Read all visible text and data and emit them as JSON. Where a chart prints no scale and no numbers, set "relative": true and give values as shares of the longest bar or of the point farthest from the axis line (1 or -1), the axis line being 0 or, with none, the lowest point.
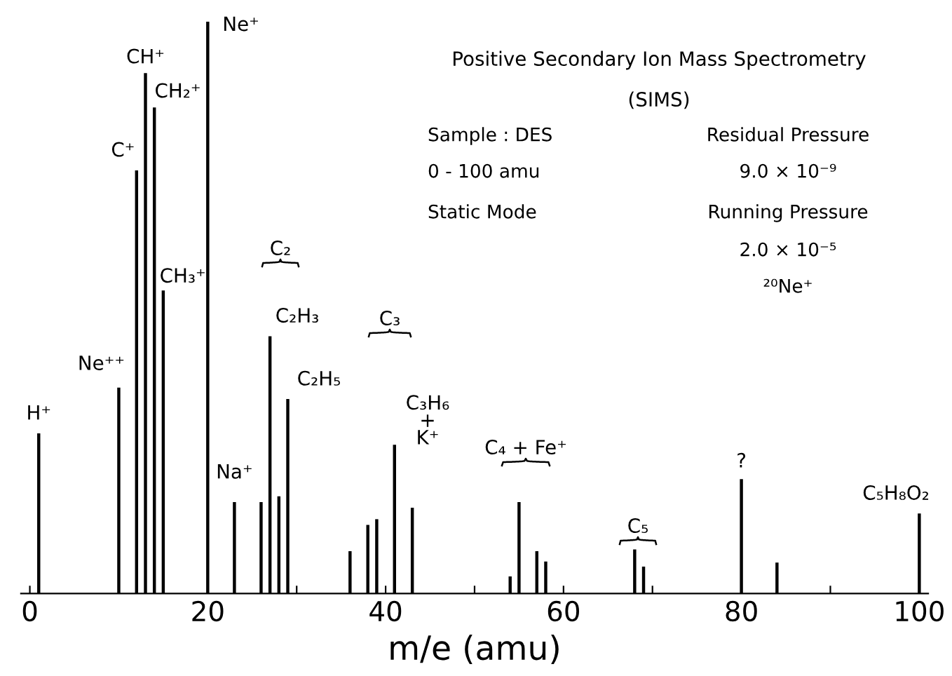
{
  "chart_data": {
    "type": "bar",
    "relative": true,
    "title": "Positive Secondary Ion Mass Spectrometry",
    "subtitle": "(SIMS)",
    "xlabel": "m/e (amu)",
    "x": [
      1,
      10,
      12,
      13,
      14,
      15,
      20,
      23,
      26,
      27,
      28,
      29,
      36,
      38,
      39,
      41,
      43,
      54,
      55,
      57,
      58,
      68,
      69,
      80,
      84,
      100
    ],
    "values": [
      0.28,
      0.36,
      0.74,
      0.91,
      0.85,
      0.53,
      1,
      0.16,
      0.16,
      0.45,
      0.17,
      0.34,
      0.074,
      0.12,
      0.13,
      0.26,
      0.15,
      0.03,
      0.16,
      0.074,
      0.056,
      0.077,
      0.047,
      0.2,
      0.054,
      0.14
    ],
    "color": "#000000",
    "xlim": [
      -1,
      101
    ],
    "xticks": [
      0,
      {
        "value": 10,
        "label": null
      },
      20,
      {
        "value": 30,
        "label": null
      },
      40,
      {
        "value": 50,
        "label": null
      },
      60,
      {
        "value": 70,
        "label": null
      },
      80,
      {
        "value": 90,
        "label": null
      },
      100
    ],
    "grid": false,
    "annotations": [
      "Sample : DES",
      "0 - 100 amu",
      "Static Mode",
      "Residual Pressure",
      "9.0 × 10⁻⁹",
      "Running Pressure",
      "2.0 × 10⁻⁵",
      "²⁰Ne⁺",
      "C₂",
      "C₃",
      "C₄ + Fe⁺",
      "C₅",
      {
        "text": "H⁺",
        "x": 1,
        "y": 0.28
      },
      {
        "text": "Ne⁺⁺",
        "x": 10,
        "y": 0.36
      },
      {
        "text": "C⁺",
        "x": 12,
        "y": 0.74
      },
      {
        "text": "CH⁺",
        "x": 13,
        "y": 0.91
      },
      {
        "text": "CH₂⁺",
        "x": 14,
        "y": 0.85
      },
      {
        "text": "CH₃⁺",
        "x": 15,
        "y": 0.53
      },
      {
        "text": "Ne⁺",
        "x": 20,
        "y": 1
      },
      {
        "text": "Na⁺",
        "x": 23,
        "y": 0.16
      },
      {
        "text": "C₂H₃",
        "x": 27,
        "y": 0.45
      },
      {
        "text": "C₂H₅",
        "x": 29,
        "y": 0.34
      },
      {
        "text": "C₃H₆\n+\nK⁺",
        "x": 41,
        "y": 0.26
      },
      {
        "text": "?",
        "x": 80,
        "y": 0.2
      },
      {
        "text": "C₅H₈O₂",
        "x": 100,
        "y": 0.14
      }
    ]
  }
}
